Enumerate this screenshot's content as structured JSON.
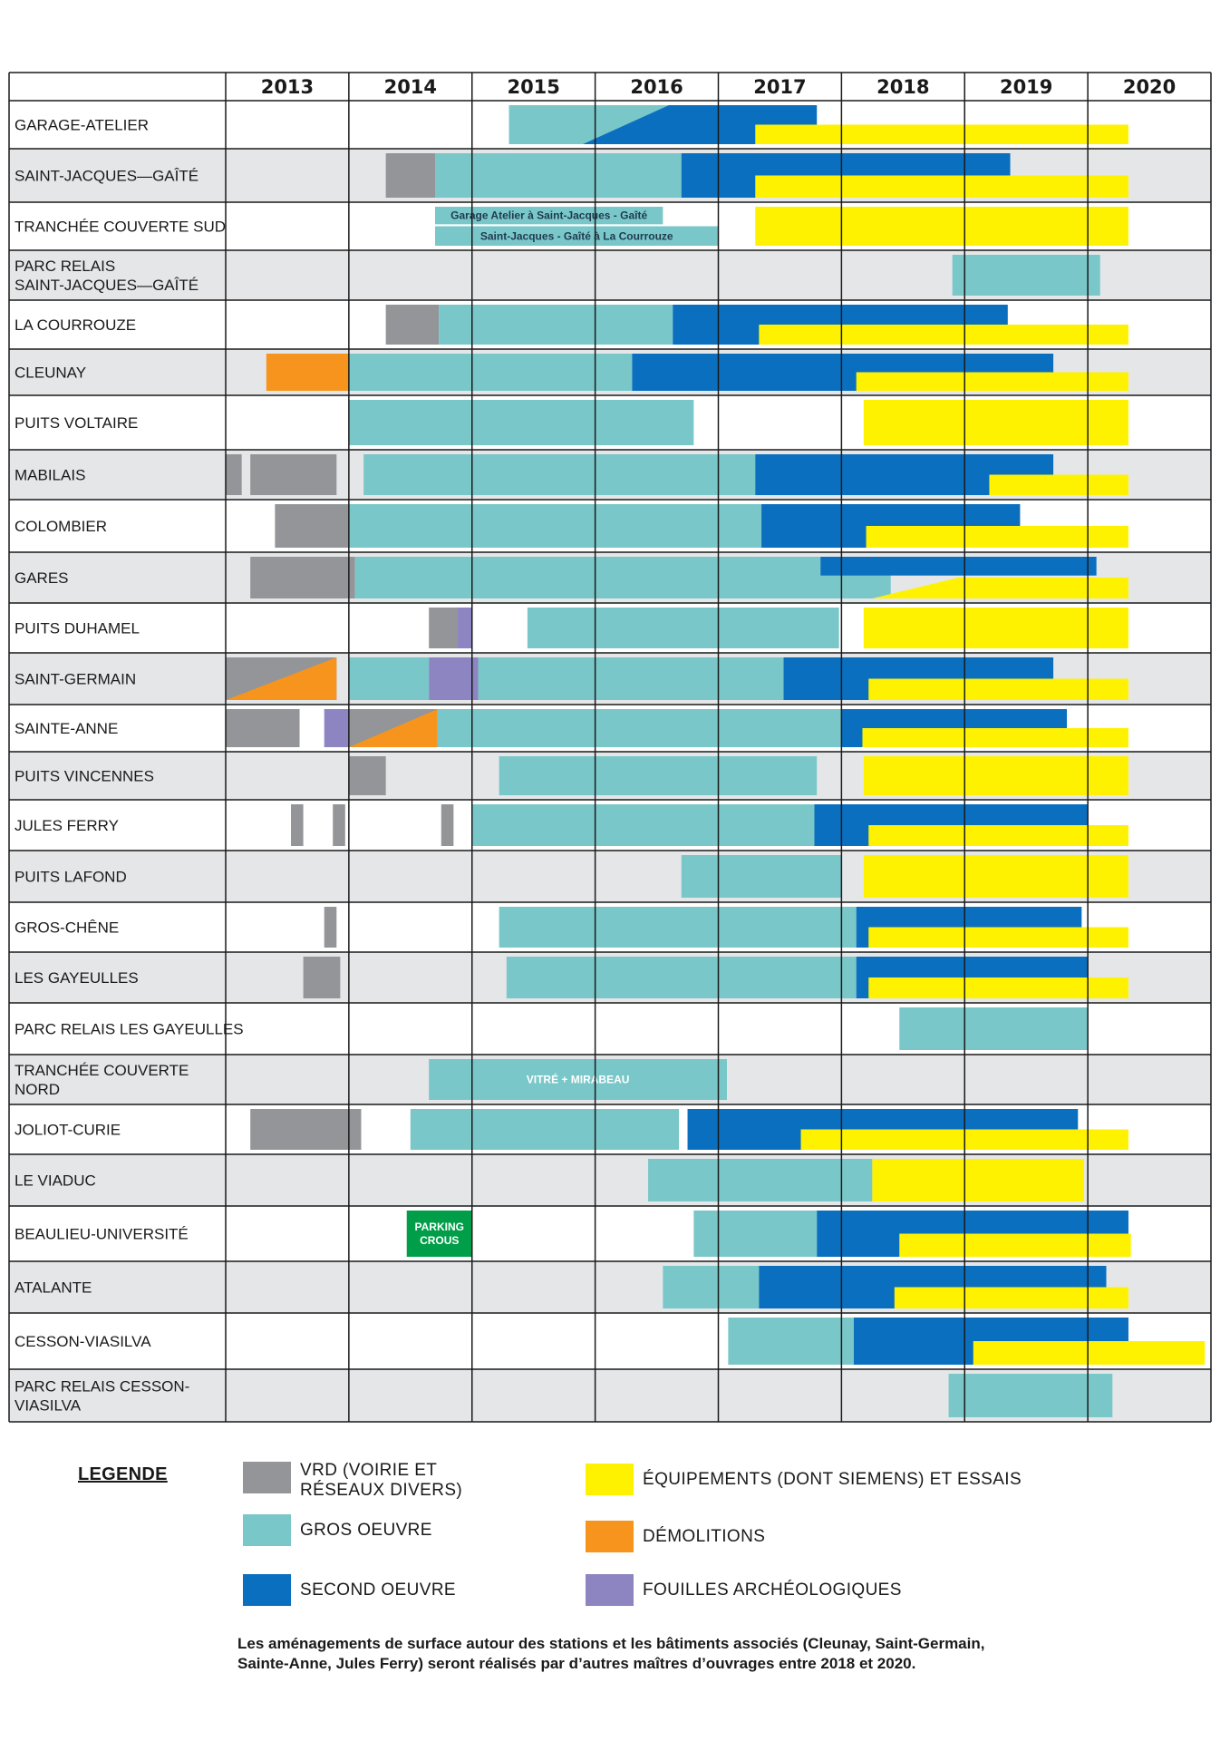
{
  "colors": {
    "vrd": "#939598",
    "gros_oeuvre": "#7ac7c9",
    "second_oeuvre": "#0a6fbf",
    "equipements": "#fff200",
    "demolitions": "#f7941d",
    "fouilles": "#8c85c1",
    "parking": "#009e49",
    "row_shade": "#e5e6e8",
    "grid": "#1a1a1a"
  },
  "chart_data": {
    "type": "gantt",
    "years": [
      "2013",
      "2014",
      "2015",
      "2016",
      "2017",
      "2018",
      "2019",
      "2020"
    ],
    "rows": [
      {
        "label": "GARAGE-ATELIER",
        "bars": [
          {
            "cat": "gros_oeuvre",
            "start": 2015.3,
            "end": 2016.85
          },
          {
            "cat": "second_oeuvre",
            "start": 2015.9,
            "end": 2017.8,
            "diag": "up"
          },
          {
            "cat": "equipements",
            "start": 2017.3,
            "end": 2020.33,
            "lane": "bottom"
          }
        ]
      },
      {
        "label": "SAINT-JACQUES—GAÎTÉ",
        "bars": [
          {
            "cat": "vrd",
            "start": 2014.3,
            "end": 2014.7
          },
          {
            "cat": "gros_oeuvre",
            "start": 2014.7,
            "end": 2016.7
          },
          {
            "cat": "second_oeuvre",
            "start": 2016.7,
            "end": 2019.37
          },
          {
            "cat": "equipements",
            "start": 2017.3,
            "end": 2020.33,
            "lane": "bottom"
          }
        ]
      },
      {
        "label": "TRANCHÉE COUVERTE SUD",
        "bars": [
          {
            "cat": "gros_oeuvre",
            "start": 2014.7,
            "end": 2016.55,
            "lane": "top",
            "text": "Garage Atelier à Saint-Jacques - Gaîté"
          },
          {
            "cat": "gros_oeuvre",
            "start": 2014.7,
            "end": 2017.0,
            "lane": "bottom",
            "text": "Saint-Jacques - Gaîté à La Courrouze"
          },
          {
            "cat": "equipements",
            "start": 2017.3,
            "end": 2020.33
          }
        ]
      },
      {
        "label": "PARC RELAIS SAINT-JACQUES—GAÎTÉ",
        "bars": [
          {
            "cat": "gros_oeuvre",
            "start": 2018.9,
            "end": 2020.1
          }
        ]
      },
      {
        "label": "LA COURROUZE",
        "bars": [
          {
            "cat": "vrd",
            "start": 2014.3,
            "end": 2014.73
          },
          {
            "cat": "gros_oeuvre",
            "start": 2014.73,
            "end": 2016.63
          },
          {
            "cat": "second_oeuvre",
            "start": 2016.63,
            "end": 2019.35
          },
          {
            "cat": "equipements",
            "start": 2017.33,
            "end": 2020.33,
            "lane": "bottom"
          }
        ]
      },
      {
        "label": "CLEUNAY",
        "bars": [
          {
            "cat": "demolitions",
            "start": 2013.33,
            "end": 2014.0
          },
          {
            "cat": "gros_oeuvre",
            "start": 2014.0,
            "end": 2016.3
          },
          {
            "cat": "second_oeuvre",
            "start": 2016.3,
            "end": 2019.72
          },
          {
            "cat": "equipements",
            "start": 2018.12,
            "end": 2020.33,
            "lane": "bottom"
          }
        ]
      },
      {
        "label": "PUITS VOLTAIRE",
        "bars": [
          {
            "cat": "gros_oeuvre",
            "start": 2014.0,
            "end": 2016.8
          },
          {
            "cat": "equipements",
            "start": 2018.18,
            "end": 2020.33
          }
        ]
      },
      {
        "label": "MABILAIS",
        "bars": [
          {
            "cat": "vrd",
            "start": 2013.0,
            "end": 2013.13
          },
          {
            "cat": "vrd",
            "start": 2013.2,
            "end": 2013.9
          },
          {
            "cat": "gros_oeuvre",
            "start": 2014.12,
            "end": 2017.3
          },
          {
            "cat": "second_oeuvre",
            "start": 2017.3,
            "end": 2019.72
          },
          {
            "cat": "equipements",
            "start": 2019.2,
            "end": 2020.33,
            "lane": "bottom"
          }
        ]
      },
      {
        "label": "COLOMBIER",
        "bars": [
          {
            "cat": "vrd",
            "start": 2013.4,
            "end": 2014.0
          },
          {
            "cat": "gros_oeuvre",
            "start": 2014.0,
            "end": 2017.35
          },
          {
            "cat": "second_oeuvre",
            "start": 2017.35,
            "end": 2019.45
          },
          {
            "cat": "equipements",
            "start": 2018.2,
            "end": 2020.33,
            "lane": "bottom"
          }
        ]
      },
      {
        "label": "GARES",
        "bars": [
          {
            "cat": "vrd",
            "start": 2013.2,
            "end": 2014.05
          },
          {
            "cat": "gros_oeuvre",
            "start": 2014.05,
            "end": 2018.4
          },
          {
            "cat": "second_oeuvre",
            "start": 2017.83,
            "end": 2020.07,
            "lane": "top"
          },
          {
            "cat": "equipements",
            "start": 2018.25,
            "end": 2020.33,
            "lane": "bottom",
            "diag": "up"
          }
        ]
      },
      {
        "label": "PUITS DUHAMEL",
        "bars": [
          {
            "cat": "vrd",
            "start": 2014.65,
            "end": 2014.88
          },
          {
            "cat": "fouilles",
            "start": 2014.88,
            "end": 2015.0
          },
          {
            "cat": "gros_oeuvre",
            "start": 2015.45,
            "end": 2017.98
          },
          {
            "cat": "equipements",
            "start": 2018.18,
            "end": 2020.33
          }
        ]
      },
      {
        "label": "SAINT-GERMAIN",
        "bars": [
          {
            "cat": "vrd",
            "start": 2013.0,
            "end": 2013.9,
            "split": "demolitions"
          },
          {
            "cat": "gros_oeuvre",
            "start": 2014.0,
            "end": 2014.65
          },
          {
            "cat": "fouilles",
            "start": 2014.65,
            "end": 2015.05
          },
          {
            "cat": "gros_oeuvre",
            "start": 2015.05,
            "end": 2017.53
          },
          {
            "cat": "second_oeuvre",
            "start": 2017.53,
            "end": 2019.72
          },
          {
            "cat": "equipements",
            "start": 2018.22,
            "end": 2020.33,
            "lane": "bottom"
          }
        ]
      },
      {
        "label": "SAINTE-ANNE",
        "bars": [
          {
            "cat": "vrd",
            "start": 2013.0,
            "end": 2013.6
          },
          {
            "cat": "fouilles",
            "start": 2013.8,
            "end": 2014.0
          },
          {
            "cat": "vrd",
            "start": 2014.0,
            "end": 2014.72,
            "split": "demolitions"
          },
          {
            "cat": "gros_oeuvre",
            "start": 2014.72,
            "end": 2018.0
          },
          {
            "cat": "second_oeuvre",
            "start": 2018.0,
            "end": 2019.83
          },
          {
            "cat": "equipements",
            "start": 2018.17,
            "end": 2020.33,
            "lane": "bottom"
          }
        ]
      },
      {
        "label": "PUITS VINCENNES",
        "bars": [
          {
            "cat": "vrd",
            "start": 2014.0,
            "end": 2014.3
          },
          {
            "cat": "gros_oeuvre",
            "start": 2015.22,
            "end": 2017.8
          },
          {
            "cat": "equipements",
            "start": 2018.18,
            "end": 2020.33
          }
        ]
      },
      {
        "label": "JULES FERRY",
        "bars": [
          {
            "cat": "vrd",
            "start": 2013.53,
            "end": 2013.63
          },
          {
            "cat": "vrd",
            "start": 2013.87,
            "end": 2013.97
          },
          {
            "cat": "vrd",
            "start": 2014.75,
            "end": 2014.85
          },
          {
            "cat": "gros_oeuvre",
            "start": 2015.0,
            "end": 2017.78
          },
          {
            "cat": "second_oeuvre",
            "start": 2017.78,
            "end": 2020.0
          },
          {
            "cat": "equipements",
            "start": 2018.22,
            "end": 2020.33,
            "lane": "bottom"
          }
        ]
      },
      {
        "label": "PUITS LAFOND",
        "bars": [
          {
            "cat": "gros_oeuvre",
            "start": 2016.7,
            "end": 2018.0
          },
          {
            "cat": "equipements",
            "start": 2018.18,
            "end": 2020.33
          }
        ]
      },
      {
        "label": "GROS-CHÊNE",
        "bars": [
          {
            "cat": "vrd",
            "start": 2013.8,
            "end": 2013.9
          },
          {
            "cat": "gros_oeuvre",
            "start": 2015.22,
            "end": 2018.12
          },
          {
            "cat": "second_oeuvre",
            "start": 2018.12,
            "end": 2019.95
          },
          {
            "cat": "equipements",
            "start": 2018.22,
            "end": 2020.33,
            "lane": "bottom"
          }
        ]
      },
      {
        "label": "LES GAYEULLES",
        "bars": [
          {
            "cat": "vrd",
            "start": 2013.63,
            "end": 2013.93
          },
          {
            "cat": "gros_oeuvre",
            "start": 2015.28,
            "end": 2018.12
          },
          {
            "cat": "second_oeuvre",
            "start": 2018.12,
            "end": 2020.0
          },
          {
            "cat": "equipements",
            "start": 2018.22,
            "end": 2020.33,
            "lane": "bottom"
          }
        ]
      },
      {
        "label": "PARC RELAIS LES GAYEULLES",
        "bars": [
          {
            "cat": "gros_oeuvre",
            "start": 2018.47,
            "end": 2020.0
          }
        ]
      },
      {
        "label": "TRANCHÉE COUVERTE NORD",
        "bars": [
          {
            "cat": "gros_oeuvre",
            "start": 2014.65,
            "end": 2017.07,
            "text": "VITRÉ + MIRABEAU"
          }
        ]
      },
      {
        "label": "JOLIOT-CURIE",
        "bars": [
          {
            "cat": "vrd",
            "start": 2013.2,
            "end": 2014.1
          },
          {
            "cat": "gros_oeuvre",
            "start": 2014.5,
            "end": 2016.68
          },
          {
            "cat": "second_oeuvre",
            "start": 2016.75,
            "end": 2019.92
          },
          {
            "cat": "equipements",
            "start": 2017.67,
            "end": 2020.33,
            "lane": "bottom"
          }
        ]
      },
      {
        "label": "LE VIADUC",
        "bars": [
          {
            "cat": "gros_oeuvre",
            "start": 2016.43,
            "end": 2018.25
          },
          {
            "cat": "equipements",
            "start": 2018.25,
            "end": 2019.97
          }
        ]
      },
      {
        "label": "BEAULIEU-UNIVERSITÉ",
        "bars": [
          {
            "cat": "parking",
            "start": 2014.47,
            "end": 2015.0,
            "text": "PARKING CROUS"
          },
          {
            "cat": "gros_oeuvre",
            "start": 2016.8,
            "end": 2017.8
          },
          {
            "cat": "second_oeuvre",
            "start": 2017.8,
            "end": 2020.33
          },
          {
            "cat": "equipements",
            "start": 2018.47,
            "end": 2020.35,
            "lane": "bottom"
          }
        ]
      },
      {
        "label": "ATALANTE",
        "bars": [
          {
            "cat": "gros_oeuvre",
            "start": 2016.55,
            "end": 2017.33
          },
          {
            "cat": "second_oeuvre",
            "start": 2017.33,
            "end": 2020.15
          },
          {
            "cat": "equipements",
            "start": 2018.43,
            "end": 2020.33,
            "lane": "bottom"
          }
        ]
      },
      {
        "label": "CESSON-VIASILVA",
        "bars": [
          {
            "cat": "gros_oeuvre",
            "start": 2017.08,
            "end": 2018.1
          },
          {
            "cat": "second_oeuvre",
            "start": 2018.1,
            "end": 2020.33
          },
          {
            "cat": "equipements",
            "start": 2019.07,
            "end": 2020.95,
            "lane": "bottom"
          }
        ]
      },
      {
        "label": "PARC RELAIS CESSON-VIASILVA",
        "bars": [
          {
            "cat": "gros_oeuvre",
            "start": 2018.87,
            "end": 2020.2
          }
        ]
      }
    ]
  },
  "legend": {
    "title": "LEGENDE",
    "vrd": "VRD (VOIRIE ET RÉSEAUX DIVERS)",
    "gros_oeuvre": "GROS OEUVRE",
    "second_oeuvre": "SECOND OEUVRE",
    "equipements": "ÉQUIPEMENTS (DONT SIEMENS) ET ESSAIS",
    "demolitions": "DÉMOLITIONS",
    "fouilles": "FOUILLES ARCHÉOLOGIQUES"
  },
  "footnote": "Les aménagements de surface autour des stations et les bâtiments associés (Cleunay, Saint-Germain, Sainte-Anne, Jules Ferry) seront réalisés par d’autres maîtres d’ouvrages entre 2018 et 2020."
}
